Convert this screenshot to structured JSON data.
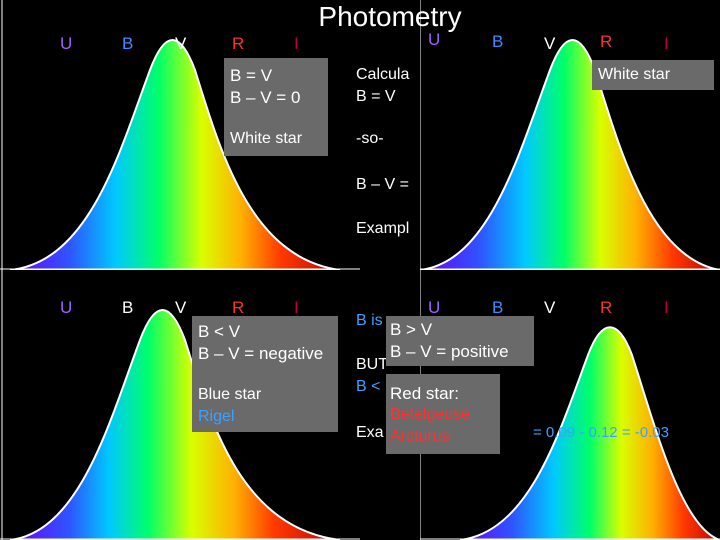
{
  "title": "Photometry",
  "band_labels": [
    "U",
    "B",
    "V",
    "R",
    "I"
  ],
  "colors": {
    "U": "#a060ff",
    "B": "#3e8cff",
    "V": "#7aff8a",
    "R": "#ff3030",
    "I": "#c0003c",
    "box_bg": "#6a6a6a",
    "accent_blue": "#3da0ff",
    "accent_red": "#ff3030"
  },
  "white_box": {
    "line1": "B = V",
    "line2": "B – V = 0",
    "line3": "White star"
  },
  "white_box_small": {
    "text": "White star"
  },
  "middle_text": {
    "calc": "Calcula",
    "bv": "B = V",
    "so": "-so-",
    "bmv": "B – V =",
    "example": "Exampl",
    "b_is": "B is",
    "but": "BUT",
    "b_lt": "B <",
    "exa": "Exa",
    "example_values": "= 0.09 - 0.12 = -0.03"
  },
  "blue_box": {
    "line1": "B < V",
    "line2": "B – V =  negative",
    "line3": "Blue star",
    "line4": "Rigel"
  },
  "red_box": {
    "line1": "B > V",
    "line2": "B – V =  positive",
    "line3": "Red star:",
    "line4": "Betelgeuse",
    "line5": "Arcturus"
  }
}
